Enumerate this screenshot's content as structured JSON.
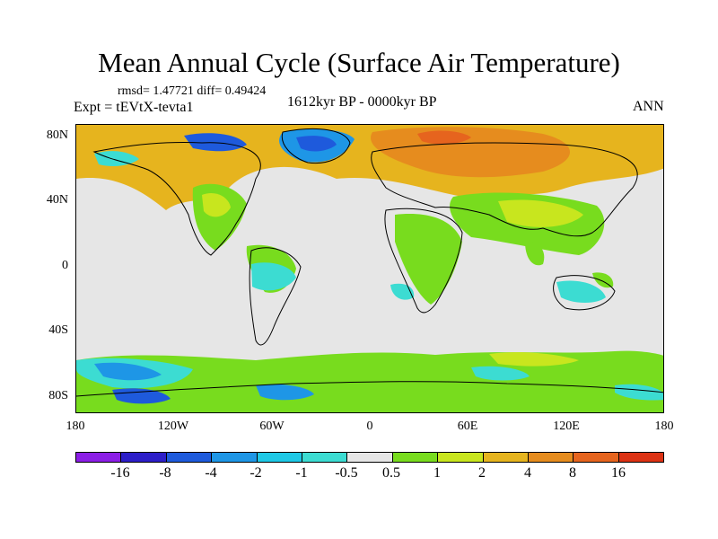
{
  "title": "Mean Annual Cycle (Surface Air Temperature)",
  "stats": "rmsd= 1.47721 diff= 0.49424",
  "experiment": "Expt = tEVtX-tevta1",
  "period": "1612kyr BP - 0000kyr BP",
  "season": "ANN",
  "y_axis": [
    "80N",
    "40N",
    "0",
    "40S",
    "80S"
  ],
  "x_axis": [
    "180",
    "120W",
    "60W",
    "0",
    "60E",
    "120E",
    "180"
  ],
  "colorbar": {
    "labels": [
      "-16",
      "-8",
      "-4",
      "-2",
      "-1",
      "-0.5",
      "0.5",
      "1",
      "2",
      "4",
      "8",
      "16"
    ],
    "colors": [
      "#8b1ee6",
      "#2d1ec8",
      "#1e5adc",
      "#1e96e6",
      "#1ec8e6",
      "#3cdcd2",
      "#e6e6e6",
      "#78dc1e",
      "#c8e61e",
      "#e6b41e",
      "#e68c1e",
      "#e6641e",
      "#dc3214"
    ]
  },
  "map_data": {
    "type": "filled-contour world map",
    "variable": "Surface Air Temperature difference",
    "lat_range": [
      -90,
      90
    ],
    "lon_range": [
      -180,
      180
    ]
  }
}
